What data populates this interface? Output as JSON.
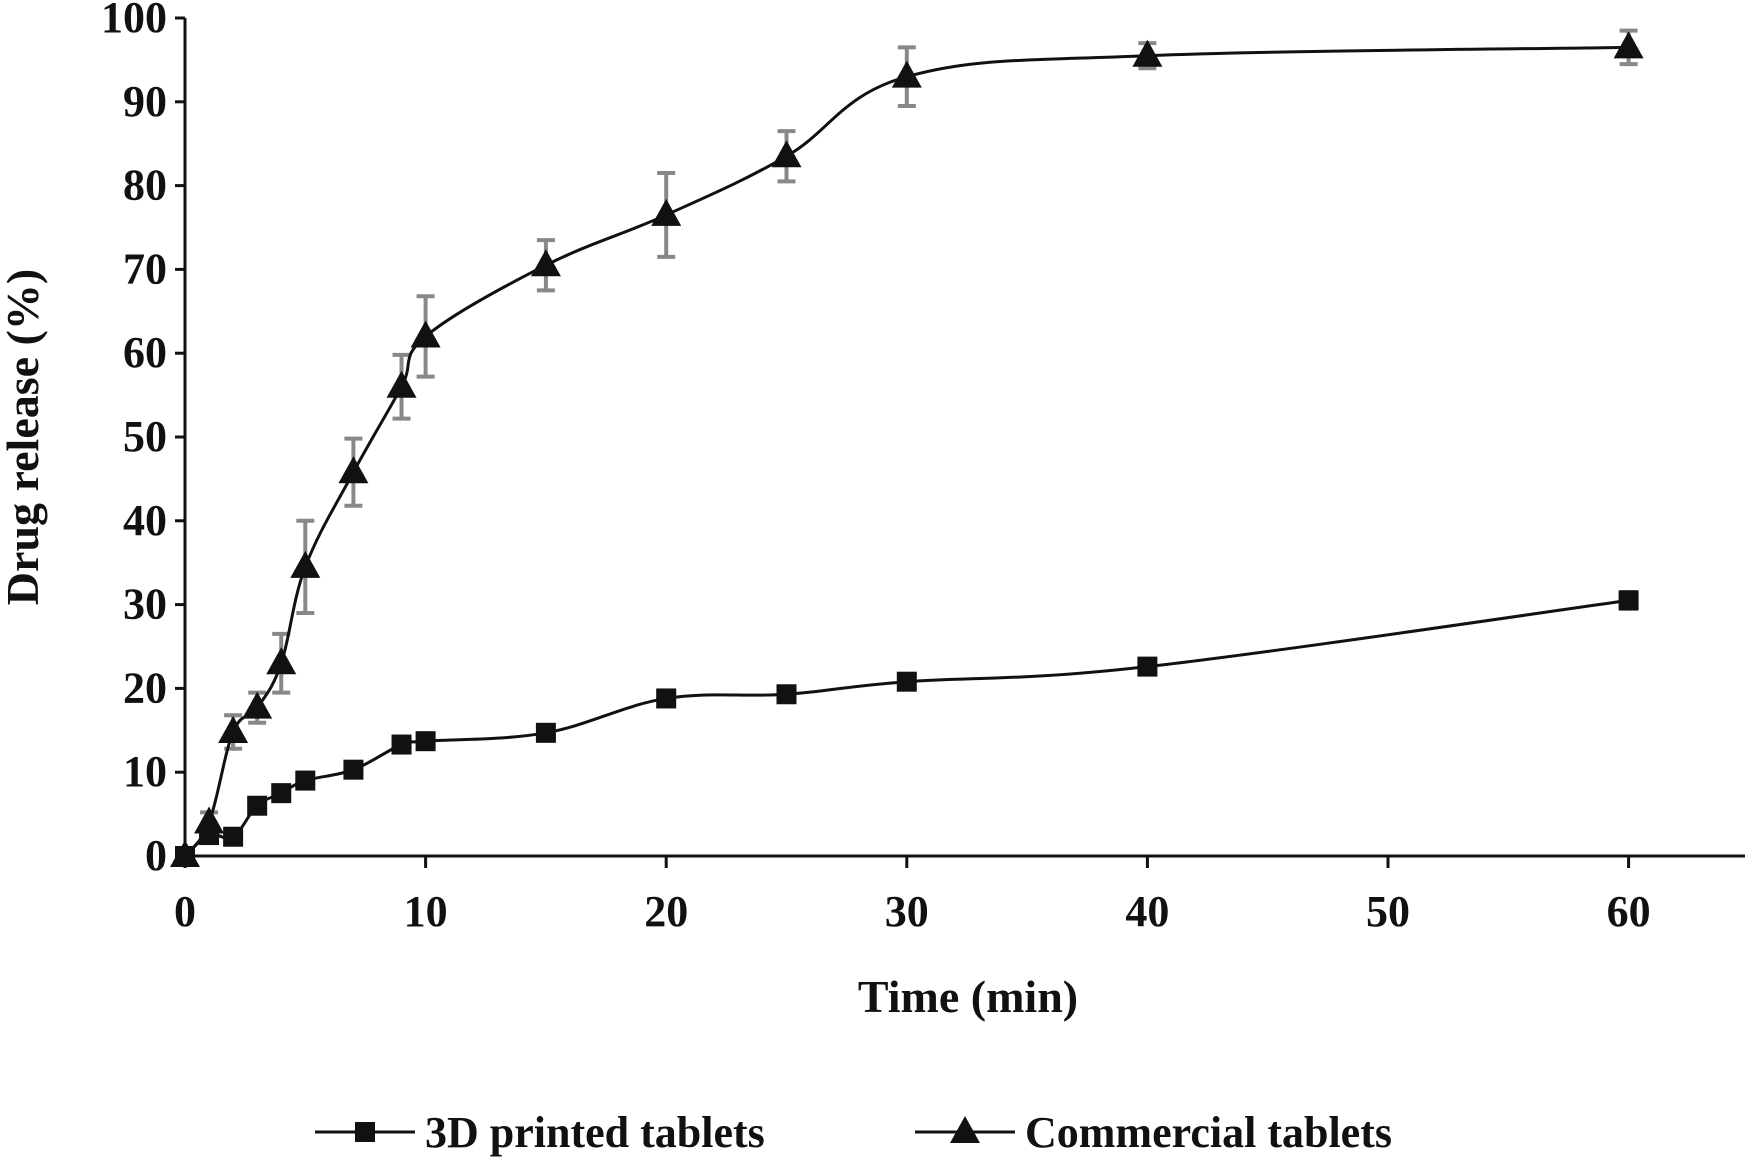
{
  "chart_data": {
    "type": "line",
    "title": "",
    "xlabel": "Time (min)",
    "ylabel": "Drug release (%)",
    "xlim": [
      0,
      65
    ],
    "ylim": [
      0,
      100
    ],
    "xticks": [
      0,
      10,
      20,
      30,
      40,
      50,
      60
    ],
    "yticks": [
      0,
      10,
      20,
      30,
      40,
      50,
      60,
      70,
      80,
      90,
      100
    ],
    "grid": false,
    "legend_position": "bottom",
    "series": [
      {
        "name": "3D printed tablets",
        "marker": "square",
        "color": "#111111",
        "error_color": "#888888",
        "x": [
          0,
          1,
          2,
          3,
          4,
          5,
          7,
          9,
          10,
          15,
          20,
          25,
          30,
          40,
          60
        ],
        "y": [
          0,
          2.5,
          2.3,
          6.0,
          7.5,
          9.0,
          10.3,
          13.3,
          13.7,
          14.7,
          18.8,
          19.3,
          20.8,
          22.6,
          30.5
        ],
        "error": [
          0,
          0.5,
          0.4,
          0.5,
          0.5,
          0.6,
          0.6,
          0.6,
          0.6,
          0.6,
          0.6,
          0.6,
          0.6,
          0.6,
          1.0
        ]
      },
      {
        "name": "Commercial tablets",
        "marker": "triangle",
        "color": "#111111",
        "error_color": "#888888",
        "x": [
          0,
          1,
          2,
          3,
          4,
          5,
          7,
          9,
          10,
          15,
          20,
          25,
          30,
          40,
          60
        ],
        "y": [
          0,
          4.0,
          14.8,
          17.7,
          23.0,
          34.5,
          45.8,
          56.0,
          62.0,
          70.5,
          76.5,
          83.5,
          93.0,
          95.5,
          96.5
        ],
        "error": [
          0,
          1.2,
          2.0,
          1.8,
          3.5,
          5.5,
          4.0,
          3.8,
          4.8,
          3.0,
          5.0,
          3.0,
          3.5,
          1.5,
          2.0
        ]
      }
    ]
  }
}
